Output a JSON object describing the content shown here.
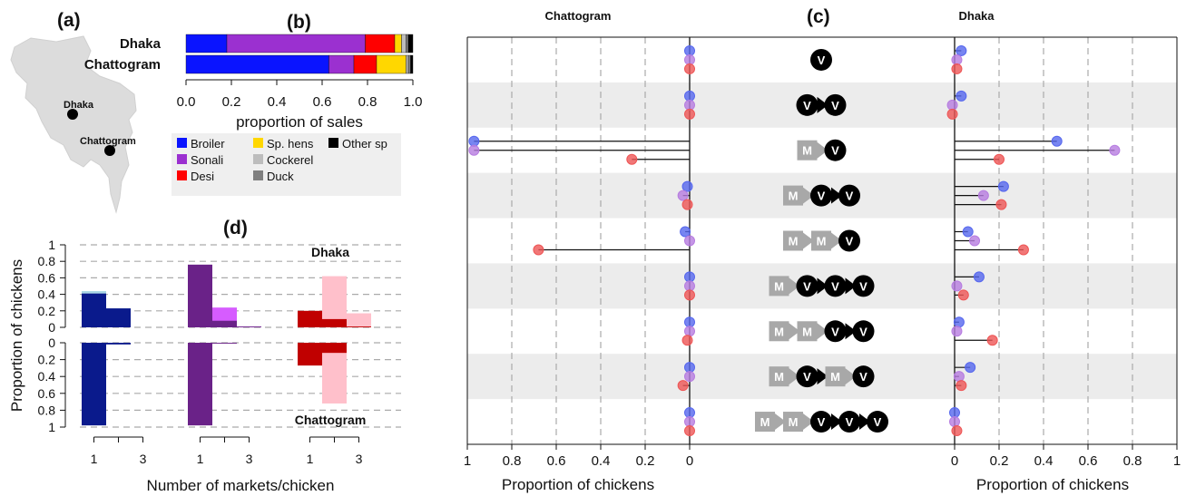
{
  "chart_data": [
    {
      "panel": "(a)",
      "type": "map",
      "cities": [
        {
          "name": "Dhaka"
        },
        {
          "name": "Chattogram"
        }
      ]
    },
    {
      "panel": "(b)",
      "type": "bar",
      "orientation": "horizontal",
      "stacked": true,
      "categories": [
        "Dhaka",
        "Chattogram"
      ],
      "xlabel": "proportion of sales",
      "xticks": [
        "0.0",
        "0.2",
        "0.4",
        "0.6",
        "0.8",
        "1.0"
      ],
      "xlim": [
        0,
        1
      ],
      "series": [
        {
          "name": "Broiler",
          "color": "#0a14ff",
          "values": [
            0.18,
            0.63
          ]
        },
        {
          "name": "Sonali",
          "color": "#9b30d0",
          "values": [
            0.61,
            0.11
          ]
        },
        {
          "name": "Desi",
          "color": "#ff0000",
          "values": [
            0.13,
            0.1
          ]
        },
        {
          "name": "Sp. hens",
          "color": "#ffd700",
          "values": [
            0.03,
            0.13
          ]
        },
        {
          "name": "Cockerel",
          "color": "#bdbdbd",
          "values": [
            0.02,
            0.01
          ]
        },
        {
          "name": "Duck",
          "color": "#7f7f7f",
          "values": [
            0.01,
            0.01
          ]
        },
        {
          "name": "Other sp",
          "color": "#000000",
          "values": [
            0.02,
            0.01
          ]
        }
      ],
      "legend": [
        "Broiler",
        "Sonali",
        "Desi",
        "Sp. hens",
        "Cockerel",
        "Duck",
        "Other sp"
      ]
    },
    {
      "panel": "(c)",
      "type": "dot",
      "left_title": "Chattogram",
      "right_title": "Dhaka",
      "xlabel_left": "Proportion of chickens",
      "xlabel_right": "Proportion of chickens",
      "left_xticks": [
        "1",
        "0.8",
        "0.6",
        "0.4",
        "0.2",
        "0"
      ],
      "right_xticks": [
        "0",
        "0.2",
        "0.4",
        "0.6",
        "0.8",
        "1"
      ],
      "series_colors": {
        "Broiler": "#5566ee",
        "Sonali": "#b67ce0",
        "Desi": "#ee5555"
      },
      "rows": [
        {
          "path": [
            "V"
          ],
          "chattogram": [
            0,
            0,
            0
          ],
          "dhaka": [
            0.03,
            0.01,
            0.01
          ]
        },
        {
          "path": [
            "V",
            "V"
          ],
          "chattogram": [
            0,
            0,
            0
          ],
          "dhaka": [
            0.03,
            -0.01,
            -0.01
          ]
        },
        {
          "path": [
            "M",
            "V"
          ],
          "chattogram": [
            0.97,
            0.97,
            0.26
          ],
          "dhaka": [
            0.46,
            0.72,
            0.2
          ]
        },
        {
          "path": [
            "M",
            "V",
            "V"
          ],
          "chattogram": [
            0.01,
            0.03,
            0.01
          ],
          "dhaka": [
            0.22,
            0.13,
            0.21
          ]
        },
        {
          "path": [
            "M",
            "M",
            "V"
          ],
          "chattogram": [
            0.02,
            0,
            0.68
          ],
          "dhaka": [
            0.06,
            0.09,
            0.31
          ]
        },
        {
          "path": [
            "M",
            "V",
            "V",
            "V"
          ],
          "chattogram": [
            0,
            0,
            0
          ],
          "dhaka": [
            0.11,
            0.01,
            0.04
          ]
        },
        {
          "path": [
            "M",
            "M",
            "V",
            "V"
          ],
          "chattogram": [
            0,
            0,
            0.01
          ],
          "dhaka": [
            0.02,
            0.01,
            0.17
          ]
        },
        {
          "path": [
            "M",
            "V",
            "M",
            "V"
          ],
          "chattogram": [
            0,
            0,
            0.03
          ],
          "dhaka": [
            0.07,
            0.02,
            0.03
          ]
        },
        {
          "path": [
            "M",
            "M",
            "V",
            "V",
            "V"
          ],
          "chattogram": [
            0,
            0,
            0
          ],
          "dhaka": [
            0,
            0,
            0.01
          ]
        }
      ]
    },
    {
      "panel": "(d)",
      "type": "bar",
      "ylabel": "Proportion of chickens",
      "xlabel": "Number of markets/chicken",
      "top_label": "Dhaka",
      "bottom_label": "Chattogram",
      "yticks_top": [
        "1",
        "0.8",
        "0.6",
        "0.4",
        "0.2",
        "0"
      ],
      "yticks_bottom": [
        "0",
        "0.2",
        "0.4",
        "0.6",
        "0.8",
        "1"
      ],
      "xticks": [
        "1",
        "3",
        "1",
        "3",
        "1",
        "3"
      ],
      "groups": [
        {
          "name": "Broiler",
          "dark": "#0a1a8c",
          "light": "#acd8e6",
          "dhaka_light": [
            0.44,
            0.17,
            0
          ],
          "dhaka_dark": [
            0.41,
            0.23,
            0
          ],
          "chat_light": [
            0,
            0,
            0
          ],
          "chat_dark": [
            0.98,
            0.02,
            0
          ]
        },
        {
          "name": "Sonali",
          "dark": "#6a2288",
          "light": "#d65cff",
          "dhaka_light": [
            0,
            0.24,
            0.01
          ],
          "dhaka_dark": [
            0.76,
            0.08,
            0.01
          ],
          "chat_light": [
            0,
            0,
            0
          ],
          "chat_dark": [
            0.98,
            0.01,
            0
          ]
        },
        {
          "name": "Desi",
          "dark": "#c00000",
          "light": "#ffc0cb",
          "dhaka_light": [
            0,
            0.62,
            0.17
          ],
          "dhaka_dark": [
            0.2,
            0.1,
            0.01
          ],
          "chat_light": [
            0,
            0.72,
            0
          ],
          "chat_dark": [
            0.27,
            0.12,
            0
          ]
        }
      ]
    }
  ]
}
